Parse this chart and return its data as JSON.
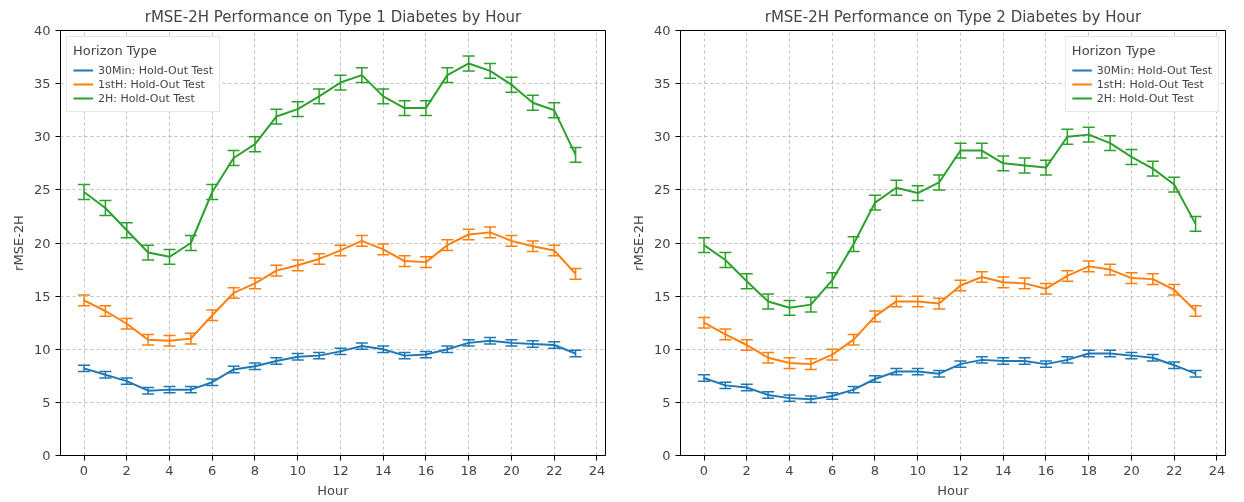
{
  "chart_data": [
    {
      "type": "line",
      "title": "rMSE-2H Performance on Type 1 Diabetes by Hour",
      "xlabel": "Hour",
      "ylabel": "rMSE-2H",
      "legend_title": "Horizon Type",
      "legend": "top left",
      "grid": true,
      "x": [
        0,
        1,
        2,
        3,
        4,
        5,
        6,
        7,
        8,
        9,
        10,
        11,
        12,
        13,
        14,
        15,
        16,
        17,
        18,
        19,
        20,
        21,
        22,
        23
      ],
      "xlim": [
        -1.1,
        24.4
      ],
      "xticks": [
        0,
        2,
        4,
        6,
        8,
        10,
        12,
        14,
        16,
        18,
        20,
        22,
        24
      ],
      "ylim": [
        0,
        40
      ],
      "yticks": [
        0,
        5,
        10,
        15,
        20,
        25,
        30,
        35,
        40
      ],
      "series": [
        {
          "name": "30Min: Hold-Out Test",
          "color": "#1f77b4",
          "values": [
            8.2,
            7.6,
            7.0,
            6.1,
            6.2,
            6.2,
            6.9,
            8.1,
            8.4,
            8.9,
            9.3,
            9.4,
            9.8,
            10.3,
            10.0,
            9.4,
            9.5,
            10.0,
            10.6,
            10.8,
            10.6,
            10.5,
            10.4,
            9.6
          ],
          "errors": [
            0.3,
            0.3,
            0.3,
            0.3,
            0.3,
            0.3,
            0.3,
            0.3,
            0.3,
            0.3,
            0.3,
            0.3,
            0.3,
            0.3,
            0.3,
            0.3,
            0.3,
            0.3,
            0.3,
            0.3,
            0.3,
            0.3,
            0.3,
            0.3
          ]
        },
        {
          "name": "1stH: Hold-Out Test",
          "color": "#ff7f0e",
          "values": [
            14.6,
            13.6,
            12.4,
            10.9,
            10.8,
            11.0,
            13.2,
            15.3,
            16.2,
            17.4,
            17.9,
            18.5,
            19.3,
            20.2,
            19.4,
            18.3,
            18.2,
            19.8,
            20.8,
            21.0,
            20.2,
            19.7,
            19.3,
            17.1
          ],
          "errors": [
            0.5,
            0.5,
            0.5,
            0.5,
            0.5,
            0.5,
            0.5,
            0.5,
            0.5,
            0.5,
            0.5,
            0.5,
            0.5,
            0.5,
            0.5,
            0.5,
            0.5,
            0.5,
            0.5,
            0.5,
            0.5,
            0.5,
            0.5,
            0.5
          ]
        },
        {
          "name": "2H: Hold-Out Test",
          "color": "#2ca02c",
          "values": [
            24.8,
            23.3,
            21.2,
            19.1,
            18.7,
            20.0,
            24.8,
            28.0,
            29.3,
            31.9,
            32.6,
            33.8,
            35.1,
            35.8,
            33.8,
            32.7,
            32.7,
            35.8,
            36.9,
            36.2,
            34.9,
            33.2,
            32.5,
            28.3
          ],
          "errors": [
            0.7,
            0.7,
            0.7,
            0.7,
            0.7,
            0.7,
            0.7,
            0.7,
            0.7,
            0.7,
            0.7,
            0.7,
            0.7,
            0.7,
            0.7,
            0.7,
            0.7,
            0.7,
            0.7,
            0.7,
            0.7,
            0.7,
            0.7,
            0.7
          ]
        }
      ]
    },
    {
      "type": "line",
      "title": "rMSE-2H Performance on Type 2 Diabetes by Hour",
      "xlabel": "Hour",
      "ylabel": "rMSE-2H",
      "legend_title": "Horizon Type",
      "legend": "top right",
      "grid": true,
      "x": [
        0,
        1,
        2,
        3,
        4,
        5,
        6,
        7,
        8,
        9,
        10,
        11,
        12,
        13,
        14,
        15,
        16,
        17,
        18,
        19,
        20,
        21,
        22,
        23
      ],
      "xlim": [
        -1.1,
        24.4
      ],
      "xticks": [
        0,
        2,
        4,
        6,
        8,
        10,
        12,
        14,
        16,
        18,
        20,
        22,
        24
      ],
      "ylim": [
        0,
        40
      ],
      "yticks": [
        0,
        5,
        10,
        15,
        20,
        25,
        30,
        35,
        40
      ],
      "series": [
        {
          "name": "30Min: Hold-Out Test",
          "color": "#1f77b4",
          "values": [
            7.3,
            6.6,
            6.4,
            5.7,
            5.4,
            5.3,
            5.6,
            6.2,
            7.2,
            7.9,
            7.9,
            7.7,
            8.6,
            9.0,
            8.9,
            8.9,
            8.6,
            9.0,
            9.6,
            9.6,
            9.4,
            9.2,
            8.5,
            7.7
          ],
          "errors": [
            0.3,
            0.3,
            0.3,
            0.3,
            0.3,
            0.3,
            0.3,
            0.3,
            0.3,
            0.3,
            0.3,
            0.3,
            0.3,
            0.3,
            0.3,
            0.3,
            0.3,
            0.3,
            0.3,
            0.3,
            0.3,
            0.3,
            0.3,
            0.3
          ]
        },
        {
          "name": "1stH: Hold-Out Test",
          "color": "#ff7f0e",
          "values": [
            12.5,
            11.4,
            10.4,
            9.2,
            8.7,
            8.6,
            9.5,
            10.9,
            13.1,
            14.5,
            14.5,
            14.3,
            16.0,
            16.8,
            16.3,
            16.2,
            15.7,
            16.9,
            17.8,
            17.5,
            16.7,
            16.6,
            15.6,
            13.6
          ],
          "errors": [
            0.5,
            0.5,
            0.5,
            0.5,
            0.5,
            0.5,
            0.5,
            0.5,
            0.5,
            0.5,
            0.5,
            0.5,
            0.5,
            0.5,
            0.5,
            0.5,
            0.5,
            0.5,
            0.5,
            0.5,
            0.5,
            0.5,
            0.5,
            0.5
          ]
        },
        {
          "name": "2H: Hold-Out Test",
          "color": "#2ca02c",
          "values": [
            19.8,
            18.4,
            16.4,
            14.5,
            13.9,
            14.2,
            16.5,
            19.9,
            23.8,
            25.2,
            24.7,
            25.7,
            28.7,
            28.7,
            27.5,
            27.3,
            27.1,
            30.0,
            30.2,
            29.4,
            28.1,
            27.0,
            25.5,
            21.8
          ],
          "errors": [
            0.7,
            0.7,
            0.7,
            0.7,
            0.7,
            0.7,
            0.7,
            0.7,
            0.7,
            0.7,
            0.7,
            0.7,
            0.7,
            0.7,
            0.7,
            0.7,
            0.7,
            0.7,
            0.7,
            0.7,
            0.7,
            0.7,
            0.7,
            0.7
          ]
        }
      ]
    }
  ]
}
